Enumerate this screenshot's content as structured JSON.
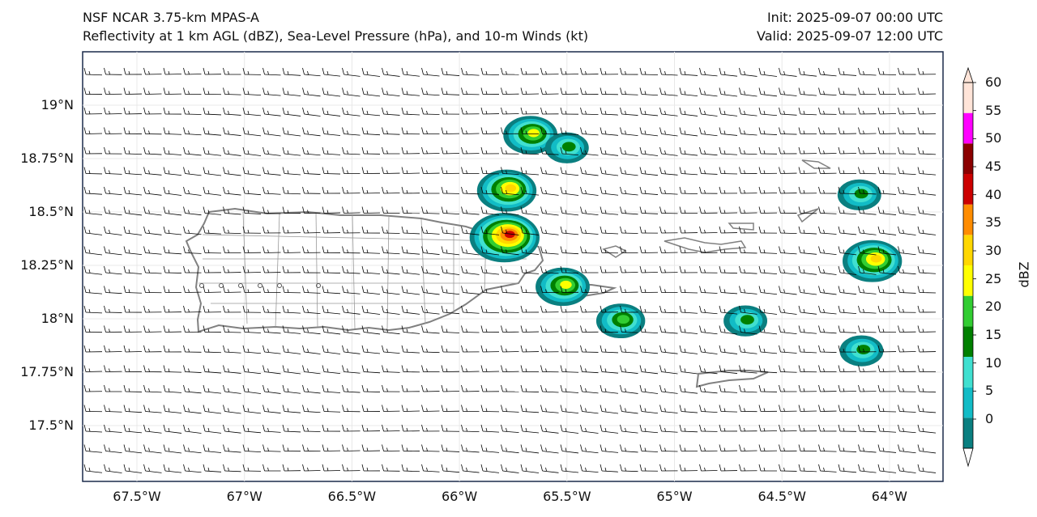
{
  "titles": {
    "left_line1": "NSF NCAR 3.75-km MPAS-A",
    "left_line2": "Reflectivity at 1 km AGL (dBZ), Sea-Level Pressure (hPa), and 10-m Winds (kt)",
    "right_line1": "Init: 2025-09-07 00:00 UTC",
    "right_line2": "Valid: 2025-09-07 12:00 UTC"
  },
  "axes": {
    "lat_labels": [
      "19°N",
      "18.75°N",
      "18.5°N",
      "18.25°N",
      "18°N",
      "17.75°N",
      "17.5°N"
    ],
    "lon_labels": [
      "67.5°W",
      "67°W",
      "66.5°W",
      "66°W",
      "65.5°W",
      "65°W",
      "64.5°W",
      "64°W"
    ]
  },
  "colorbar": {
    "title": "dBZ",
    "labels": [
      "0",
      "5",
      "10",
      "15",
      "20",
      "25",
      "30",
      "35",
      "40",
      "45",
      "50",
      "55",
      "60"
    ],
    "colors": [
      "#0a7f80",
      "#12bcc6",
      "#40e0d0",
      "#008000",
      "#32cd32",
      "#ffff00",
      "#ffd700",
      "#ff8c00",
      "#cc0000",
      "#8b0000",
      "#ff00ff",
      "#ffe4d8"
    ]
  },
  "map": {
    "region": "Puerto Rico and Virgin Islands",
    "land_outline_color": "#808080",
    "barb_color": "#000000",
    "wind_flow": "easterly ~10-15 kt",
    "reflectivity_cells": [
      {
        "lon": -65.79,
        "lat": 18.38,
        "max_dbz": 40
      },
      {
        "lon": -65.78,
        "lat": 18.6,
        "max_dbz": 30
      },
      {
        "lon": -65.52,
        "lat": 18.15,
        "max_dbz": 25
      },
      {
        "lon": -64.08,
        "lat": 18.27,
        "max_dbz": 30
      },
      {
        "lon": -65.67,
        "lat": 18.86,
        "max_dbz": 25
      },
      {
        "lon": -65.5,
        "lat": 18.8,
        "max_dbz": 15
      },
      {
        "lon": -64.13,
        "lat": 17.85,
        "max_dbz": 15
      },
      {
        "lon": -64.67,
        "lat": 17.99,
        "max_dbz": 15
      },
      {
        "lon": -65.25,
        "lat": 17.99,
        "max_dbz": 20
      },
      {
        "lon": -64.14,
        "lat": 18.58,
        "max_dbz": 15
      }
    ]
  }
}
